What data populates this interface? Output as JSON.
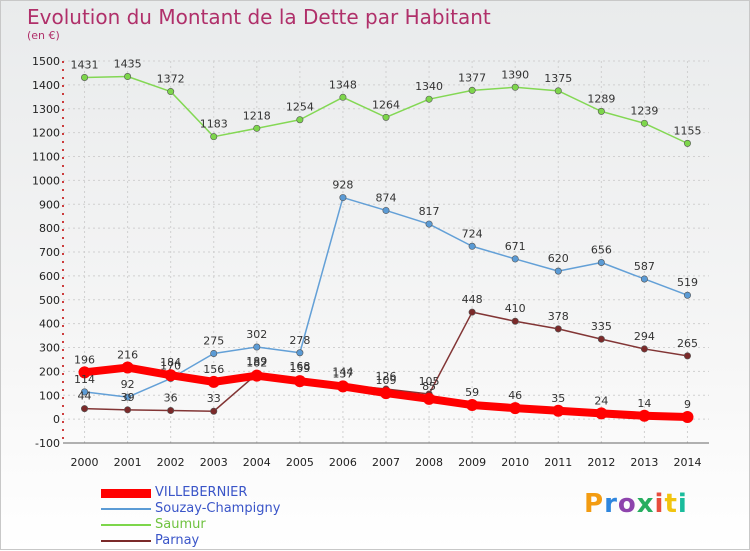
{
  "chart_data": {
    "type": "line",
    "title": "Evolution du Montant de la Dette par Habitant",
    "subtitle": "(en €)",
    "x": [
      "2000",
      "2001",
      "2002",
      "2003",
      "2004",
      "2005",
      "2006",
      "2007",
      "2008",
      "2009",
      "2010",
      "2011",
      "2012",
      "2013",
      "2014"
    ],
    "ylim": [
      -100,
      1500
    ],
    "yticks": [
      -100,
      0,
      100,
      200,
      300,
      400,
      500,
      600,
      700,
      800,
      900,
      1000,
      1100,
      1200,
      1300,
      1400,
      1500
    ],
    "grid": true,
    "legend_position": "bottom-left",
    "series": [
      {
        "name": "VILLEBERNIER",
        "color": "#ff0000",
        "values": [
          196,
          216,
          184,
          156,
          182,
          159,
          137,
          109,
          85,
          59,
          46,
          35,
          24,
          14,
          9
        ]
      },
      {
        "name": "Souzay-Champigny",
        "color": "#5b9bd5",
        "values": [
          114,
          92,
          170,
          275,
          302,
          278,
          928,
          874,
          817,
          724,
          671,
          620,
          656,
          587,
          519
        ]
      },
      {
        "name": "Saumur",
        "color": "#7dd64b",
        "values": [
          1431,
          1435,
          1372,
          1183,
          1218,
          1254,
          1348,
          1264,
          1340,
          1377,
          1390,
          1375,
          1289,
          1239,
          1155
        ]
      },
      {
        "name": "Parnay",
        "color": "#7b2a2a",
        "values": [
          44,
          39,
          36,
          33,
          189,
          168,
          144,
          126,
          105,
          448,
          410,
          378,
          335,
          294,
          265
        ]
      }
    ]
  },
  "logo": {
    "text": "Proxiti",
    "colors": [
      "#f39c12",
      "#2e86de",
      "#8e44ad",
      "#27ae60",
      "#e74c3c",
      "#f1c40f",
      "#1abc9c"
    ]
  }
}
